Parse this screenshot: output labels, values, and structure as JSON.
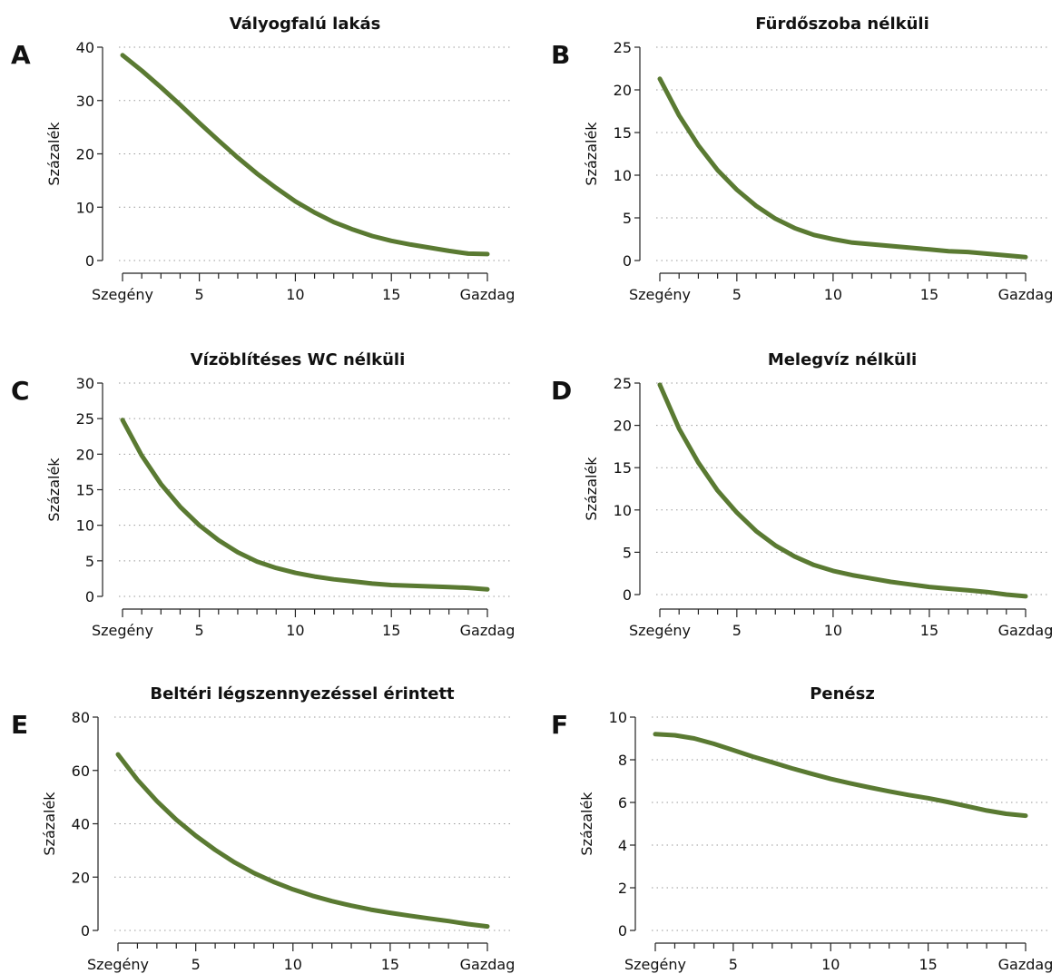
{
  "style": {
    "line_color": "#5a7a32",
    "axis_color": "#222222",
    "grid_color": "#999999"
  },
  "chart_data": [
    {
      "type": "line",
      "panel_letter": "A",
      "title": "Vályogfalú lakás",
      "ylabel": "Százalék",
      "xlabel": "",
      "xlim": [
        1,
        20
      ],
      "ylim": [
        0,
        40
      ],
      "yticks": [
        0,
        10,
        20,
        30,
        40
      ],
      "xticks": [
        {
          "value": 1,
          "label": "Szegény"
        },
        {
          "value": 5,
          "label": "5"
        },
        {
          "value": 10,
          "label": "10"
        },
        {
          "value": 15,
          "label": "15"
        },
        {
          "value": 20,
          "label": "Gazdag"
        }
      ],
      "grid": true,
      "series": [
        {
          "x": [
            1,
            2,
            3,
            4,
            5,
            6,
            7,
            8,
            9,
            10,
            11,
            12,
            13,
            14,
            15,
            16,
            17,
            18,
            19,
            20
          ],
          "y": [
            38.5,
            35.6,
            32.5,
            29.2,
            25.8,
            22.5,
            19.3,
            16.3,
            13.6,
            11.1,
            9.0,
            7.2,
            5.8,
            4.6,
            3.7,
            3.0,
            2.4,
            1.8,
            1.3,
            1.2
          ]
        }
      ]
    },
    {
      "type": "line",
      "panel_letter": "B",
      "title": "Fürdőszoba nélküli",
      "ylabel": "Százalék",
      "xlabel": "",
      "xlim": [
        1,
        20
      ],
      "ylim": [
        0,
        25
      ],
      "yticks": [
        0,
        5,
        10,
        15,
        20,
        25
      ],
      "xticks": [
        {
          "value": 1,
          "label": "Szegény"
        },
        {
          "value": 5,
          "label": "5"
        },
        {
          "value": 10,
          "label": "10"
        },
        {
          "value": 15,
          "label": "15"
        },
        {
          "value": 20,
          "label": "Gazdag"
        }
      ],
      "grid": true,
      "series": [
        {
          "x": [
            1,
            2,
            3,
            4,
            5,
            6,
            7,
            8,
            9,
            10,
            11,
            12,
            13,
            14,
            15,
            16,
            17,
            18,
            19,
            20
          ],
          "y": [
            21.3,
            17.0,
            13.5,
            10.6,
            8.3,
            6.4,
            4.9,
            3.8,
            3.0,
            2.5,
            2.1,
            1.9,
            1.7,
            1.5,
            1.3,
            1.1,
            1.0,
            0.8,
            0.6,
            0.4
          ]
        }
      ]
    },
    {
      "type": "line",
      "panel_letter": "C",
      "title": "Vízöblítéses WC nélküli",
      "ylabel": "Százalék",
      "xlabel": "",
      "xlim": [
        1,
        20
      ],
      "ylim": [
        0,
        30
      ],
      "yticks": [
        0,
        5,
        10,
        15,
        20,
        25,
        30
      ],
      "xticks": [
        {
          "value": 1,
          "label": "Szegény"
        },
        {
          "value": 5,
          "label": "5"
        },
        {
          "value": 10,
          "label": "10"
        },
        {
          "value": 15,
          "label": "15"
        },
        {
          "value": 20,
          "label": "Gazdag"
        }
      ],
      "grid": true,
      "series": [
        {
          "x": [
            1,
            2,
            3,
            4,
            5,
            6,
            7,
            8,
            9,
            10,
            11,
            12,
            13,
            14,
            15,
            16,
            17,
            18,
            19,
            20
          ],
          "y": [
            24.8,
            19.8,
            15.8,
            12.6,
            10.0,
            7.9,
            6.2,
            4.9,
            4.0,
            3.3,
            2.8,
            2.4,
            2.1,
            1.8,
            1.6,
            1.5,
            1.4,
            1.3,
            1.2,
            1.0
          ]
        }
      ]
    },
    {
      "type": "line",
      "panel_letter": "D",
      "title": "Melegvíz nélküli",
      "ylabel": "Százalék",
      "xlabel": "",
      "xlim": [
        1,
        20
      ],
      "ylim": [
        0,
        25
      ],
      "yticks": [
        0,
        5,
        10,
        15,
        20,
        25
      ],
      "xticks": [
        {
          "value": 1,
          "label": "Szegény"
        },
        {
          "value": 5,
          "label": "5"
        },
        {
          "value": 10,
          "label": "10"
        },
        {
          "value": 15,
          "label": "15"
        },
        {
          "value": 20,
          "label": "Gazdag"
        }
      ],
      "grid": true,
      "series": [
        {
          "x": [
            1,
            2,
            3,
            4,
            5,
            6,
            7,
            8,
            9,
            10,
            11,
            12,
            13,
            14,
            15,
            16,
            17,
            18,
            19,
            20
          ],
          "y": [
            24.8,
            19.6,
            15.6,
            12.3,
            9.7,
            7.5,
            5.8,
            4.5,
            3.5,
            2.8,
            2.3,
            1.9,
            1.5,
            1.2,
            0.9,
            0.7,
            0.5,
            0.3,
            0.0,
            -0.2
          ]
        }
      ]
    },
    {
      "type": "line",
      "panel_letter": "E",
      "title": "Beltéri légszennyezéssel érintett",
      "ylabel": "Százalék",
      "xlabel": "",
      "xlim": [
        1,
        20
      ],
      "ylim": [
        0,
        80
      ],
      "yticks": [
        0,
        20,
        40,
        60,
        80
      ],
      "xticks": [
        {
          "value": 1,
          "label": "Szegény"
        },
        {
          "value": 5,
          "label": "5"
        },
        {
          "value": 10,
          "label": "10"
        },
        {
          "value": 15,
          "label": "15"
        },
        {
          "value": 20,
          "label": "Gazdag"
        }
      ],
      "grid": true,
      "series": [
        {
          "x": [
            1,
            2,
            3,
            4,
            5,
            6,
            7,
            8,
            9,
            10,
            11,
            12,
            13,
            14,
            15,
            16,
            17,
            18,
            19,
            20
          ],
          "y": [
            66.0,
            56.5,
            48.5,
            41.5,
            35.5,
            30.2,
            25.5,
            21.5,
            18.2,
            15.4,
            13.0,
            11.0,
            9.3,
            7.8,
            6.6,
            5.5,
            4.5,
            3.5,
            2.4,
            1.5
          ]
        }
      ]
    },
    {
      "type": "line",
      "panel_letter": "F",
      "title": "Penész",
      "ylabel": "Százalék",
      "xlabel": "",
      "xlim": [
        1,
        20
      ],
      "ylim": [
        0,
        10
      ],
      "yticks": [
        0,
        2,
        4,
        6,
        8,
        10
      ],
      "xticks": [
        {
          "value": 1,
          "label": "Szegény"
        },
        {
          "value": 5,
          "label": "5"
        },
        {
          "value": 10,
          "label": "10"
        },
        {
          "value": 15,
          "label": "15"
        },
        {
          "value": 20,
          "label": "Gazdag"
        }
      ],
      "grid": true,
      "series": [
        {
          "x": [
            1,
            2,
            3,
            4,
            5,
            6,
            7,
            8,
            9,
            10,
            11,
            12,
            13,
            14,
            15,
            16,
            17,
            18,
            19,
            20
          ],
          "y": [
            9.2,
            9.15,
            9.0,
            8.75,
            8.45,
            8.15,
            7.88,
            7.6,
            7.35,
            7.1,
            6.9,
            6.7,
            6.52,
            6.35,
            6.2,
            6.02,
            5.82,
            5.62,
            5.47,
            5.38
          ]
        }
      ]
    }
  ]
}
